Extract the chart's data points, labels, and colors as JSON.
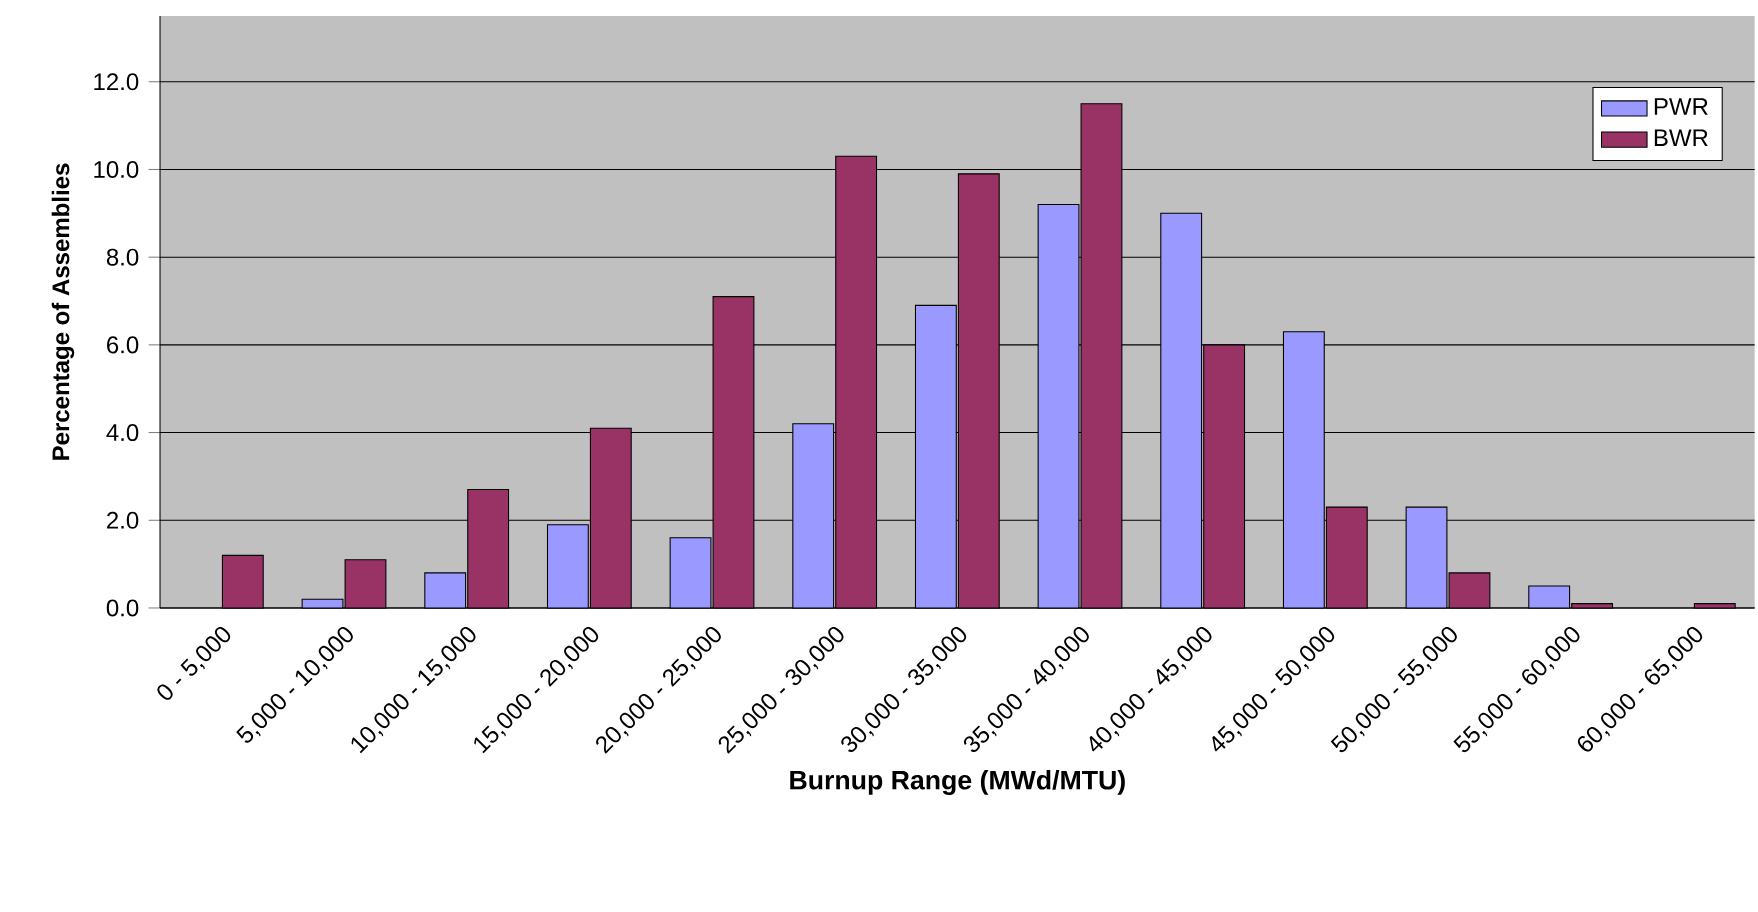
{
  "chart_data": {
    "type": "bar",
    "xlabel": "Burnup Range (MWd/MTU)",
    "ylabel": "Percentage of Assemblies",
    "categories": [
      "0 - 5,000",
      "5,000 - 10,000",
      "10,000 - 15,000",
      "15,000 - 20,000",
      "20,000 - 25,000",
      "25,000 - 30,000",
      "30,000 - 35,000",
      "35,000 - 40,000",
      "40,000 - 45,000",
      "45,000 - 50,000",
      "50,000 - 55,000",
      "55,000 - 60,000",
      "60,000 - 65,000"
    ],
    "series": [
      {
        "name": "PWR",
        "color": "#9999ff",
        "values": [
          null,
          0.2,
          0.8,
          1.9,
          1.6,
          4.2,
          6.9,
          9.2,
          9.0,
          6.3,
          2.3,
          0.5,
          null
        ]
      },
      {
        "name": "BWR",
        "color": "#993366",
        "values": [
          1.2,
          1.1,
          2.7,
          4.1,
          7.1,
          10.3,
          9.9,
          11.5,
          6.0,
          2.3,
          0.8,
          0.1,
          0.1
        ]
      }
    ],
    "ylim": [
      0,
      13.5
    ],
    "yticks": [
      {
        "value": 0,
        "label": "0.0"
      },
      {
        "value": 2,
        "label": "2.0"
      },
      {
        "value": 4,
        "label": "4.0"
      },
      {
        "value": 6,
        "label": "6.0"
      },
      {
        "value": 8,
        "label": "8.0"
      },
      {
        "value": 10,
        "label": "10.0"
      },
      {
        "value": 12,
        "label": "12.0"
      }
    ],
    "grid": "y",
    "legend": "top right"
  }
}
